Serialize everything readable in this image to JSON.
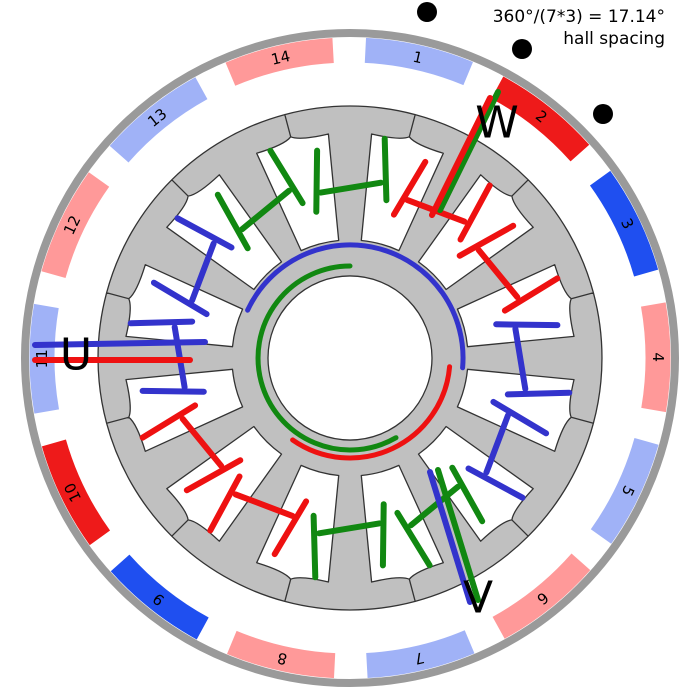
{
  "annotation": {
    "line1": "360°/(7*3) = 17.14°",
    "line2": "hall spacing"
  },
  "phases": [
    {
      "label": "U",
      "color": "#3333cc"
    },
    {
      "label": "W",
      "color": "#ee1111"
    },
    {
      "label": "V",
      "color": "#118811"
    }
  ],
  "magnets": [
    {
      "label": "14",
      "polarity": "N",
      "shade": "light",
      "color": "#ff9999"
    },
    {
      "label": "1",
      "polarity": "S",
      "shade": "light",
      "color": "#a0b2f7"
    },
    {
      "label": "2",
      "polarity": "N",
      "shade": "dark",
      "color": "#ee1a1a"
    },
    {
      "label": "3",
      "polarity": "S",
      "shade": "dark",
      "color": "#1f4ff0"
    },
    {
      "label": "4",
      "polarity": "N",
      "shade": "light",
      "color": "#ff9999"
    },
    {
      "label": "5",
      "polarity": "S",
      "shade": "light",
      "color": "#a0b2f7"
    },
    {
      "label": "6",
      "polarity": "N",
      "shade": "light",
      "color": "#ff9999"
    },
    {
      "label": "7",
      "polarity": "S",
      "shade": "light",
      "color": "#a0b2f7"
    },
    {
      "label": "8",
      "polarity": "N",
      "shade": "light",
      "color": "#ff9999"
    },
    {
      "label": "9",
      "polarity": "S",
      "shade": "dark",
      "color": "#1f4ff0"
    },
    {
      "label": "10",
      "polarity": "N",
      "shade": "dark",
      "color": "#ee1a1a"
    },
    {
      "label": "11",
      "polarity": "S",
      "shade": "light",
      "color": "#a0b2f7"
    },
    {
      "label": "12",
      "polarity": "N",
      "shade": "light",
      "color": "#ff9999"
    },
    {
      "label": "13",
      "polarity": "S",
      "shade": "light",
      "color": "#a0b2f7"
    }
  ],
  "stator": {
    "teeth": 12,
    "fill": "#c0c0c0"
  },
  "hall_sensors": {
    "count": 3,
    "spacing_deg": 17.14
  }
}
